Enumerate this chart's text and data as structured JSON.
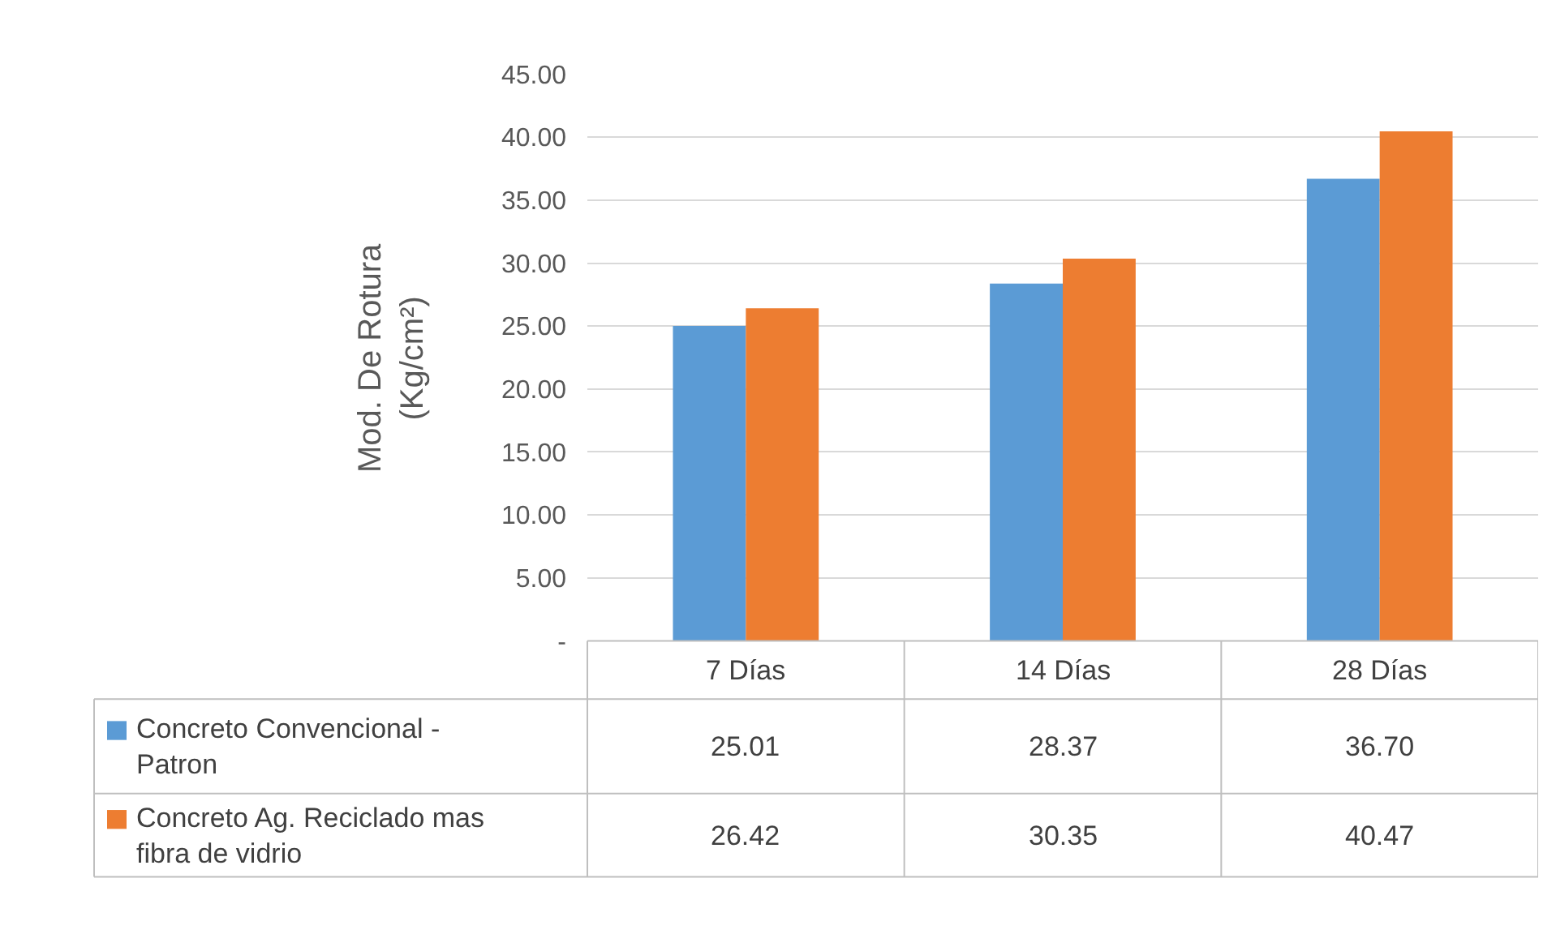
{
  "chart_data": {
    "type": "bar",
    "ylabel": "Mod. De Rotura (Kg/cm²)",
    "categories": [
      "7 Días",
      "14 Días",
      "28 Días"
    ],
    "series": [
      {
        "name": "Concreto Convencional - Patron",
        "color": "#5b9bd5",
        "values": [
          25.01,
          28.37,
          36.7
        ],
        "value_labels": [
          "25.01",
          "28.37",
          "36.70"
        ]
      },
      {
        "name": "Concreto Ag. Reciclado mas fibra de vidrio",
        "color": "#ed7d31",
        "values": [
          26.42,
          30.35,
          40.47
        ],
        "value_labels": [
          "26.42",
          "30.35",
          "40.47"
        ]
      }
    ],
    "ylim": [
      0,
      45
    ],
    "yticks": [
      {
        "value": 0,
        "label": "-"
      },
      {
        "value": 5,
        "label": "5.00"
      },
      {
        "value": 10,
        "label": "10.00"
      },
      {
        "value": 15,
        "label": "15.00"
      },
      {
        "value": 20,
        "label": "20.00"
      },
      {
        "value": 25,
        "label": "25.00"
      },
      {
        "value": 30,
        "label": "30.00"
      },
      {
        "value": 35,
        "label": "35.00"
      },
      {
        "value": 40,
        "label": "40.00"
      },
      {
        "value": 45,
        "label": "45.00"
      }
    ],
    "grid": "y",
    "legend": "bottom left"
  }
}
